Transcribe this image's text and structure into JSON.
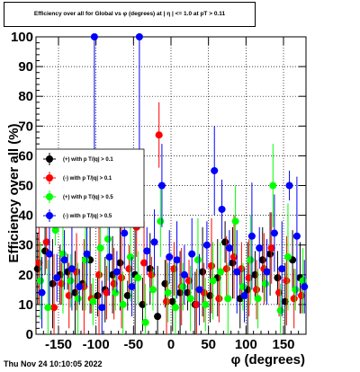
{
  "title": "Efficiency over all for Global vs φ (degrees) at | η | <= 1.0 at pT > 0.11",
  "timestamp": "Thu Nov 24 10:10:05 2022",
  "colors": {
    "black": "#000000",
    "red": "#ff0000",
    "green": "#00ff00",
    "blue": "#0000ff"
  },
  "chart_data": {
    "type": "scatter",
    "xlabel": "φ (degrees)",
    "ylabel": "Efficiency over all (%)",
    "xlim": [
      -180,
      180
    ],
    "ylim": [
      0,
      100
    ],
    "grid": true,
    "legend_position": "left-middle",
    "x_ticks": [
      -150,
      -100,
      -50,
      0,
      50,
      100,
      150
    ],
    "y_ticks": [
      0,
      10,
      20,
      30,
      40,
      50,
      60,
      70,
      80,
      90,
      100
    ],
    "series": [
      {
        "name": "(+) with p T/|q| > 0.1",
        "color": "#000000",
        "x": [
          -175,
          -165,
          -155,
          -145,
          -135,
          -125,
          -115,
          -105,
          -95,
          -85,
          -75,
          -65,
          -55,
          -45,
          -35,
          -25,
          -15,
          -5,
          5,
          15,
          25,
          35,
          45,
          55,
          65,
          75,
          85,
          95,
          105,
          115,
          125,
          135,
          145,
          155,
          165,
          175
        ],
        "y": [
          22,
          28,
          17,
          20,
          21,
          14,
          17,
          25,
          13,
          15,
          20,
          24,
          13,
          20,
          10,
          22,
          6,
          17,
          11,
          14,
          14,
          10,
          21,
          13,
          19,
          31,
          24,
          12,
          15,
          20,
          25,
          27,
          19,
          11,
          25,
          19
        ]
      },
      {
        "name": "(-) with p T/|q| > 0.1",
        "color": "#ff0000",
        "x": [
          -175,
          -165,
          -155,
          -145,
          -135,
          -125,
          -115,
          -105,
          -95,
          -85,
          -75,
          -65,
          -55,
          -45,
          -35,
          -25,
          -15,
          -5,
          5,
          15,
          25,
          35,
          45,
          55,
          65,
          75,
          85,
          95,
          105,
          115,
          125,
          135,
          145,
          155,
          165,
          175
        ],
        "y": [
          24,
          31,
          9,
          17,
          13,
          21,
          16,
          12,
          20,
          14,
          17,
          19,
          22,
          36,
          24,
          20,
          67,
          11,
          22,
          16,
          18,
          10,
          14,
          23,
          12,
          22,
          26,
          22,
          19,
          15,
          22,
          29,
          14,
          18,
          12,
          13
        ]
      },
      {
        "name": "(+) with p T/|q| > 0.5",
        "color": "#00ff00",
        "x": [
          -175,
          -165,
          -155,
          -145,
          -135,
          -125,
          -115,
          -105,
          -95,
          -85,
          -75,
          -65,
          -55,
          -45,
          -35,
          -25,
          -15,
          -5,
          5,
          15,
          25,
          35,
          45,
          55,
          65,
          75,
          85,
          95,
          105,
          115,
          125,
          135,
          145,
          155,
          165,
          175
        ],
        "y": [
          18,
          9,
          35,
          27,
          18,
          12,
          25,
          11,
          29,
          32,
          14,
          10,
          26,
          19,
          4,
          15,
          38,
          14,
          9,
          16,
          12,
          25,
          10,
          18,
          21,
          12,
          38,
          16,
          25,
          12,
          17,
          50,
          8,
          26,
          15,
          18
        ]
      },
      {
        "name": "(-) with p T/|q| > 0.5",
        "color": "#0000ff",
        "x": [
          -175,
          -165,
          -155,
          -145,
          -135,
          -125,
          -115,
          -105,
          -95,
          -85,
          -75,
          -65,
          -55,
          -45,
          -35,
          -25,
          -15,
          -5,
          5,
          15,
          25,
          35,
          45,
          55,
          65,
          75,
          85,
          95,
          105,
          115,
          125,
          135,
          145,
          155,
          165,
          175
        ],
        "y": [
          14,
          27,
          19,
          25,
          22,
          16,
          27,
          100,
          9,
          26,
          21,
          34,
          16,
          100,
          28,
          31,
          50,
          26,
          25,
          20,
          27,
          15,
          30,
          55,
          42,
          29,
          21,
          13,
          33,
          29,
          21,
          34,
          22,
          50,
          33,
          16
        ]
      }
    ]
  }
}
